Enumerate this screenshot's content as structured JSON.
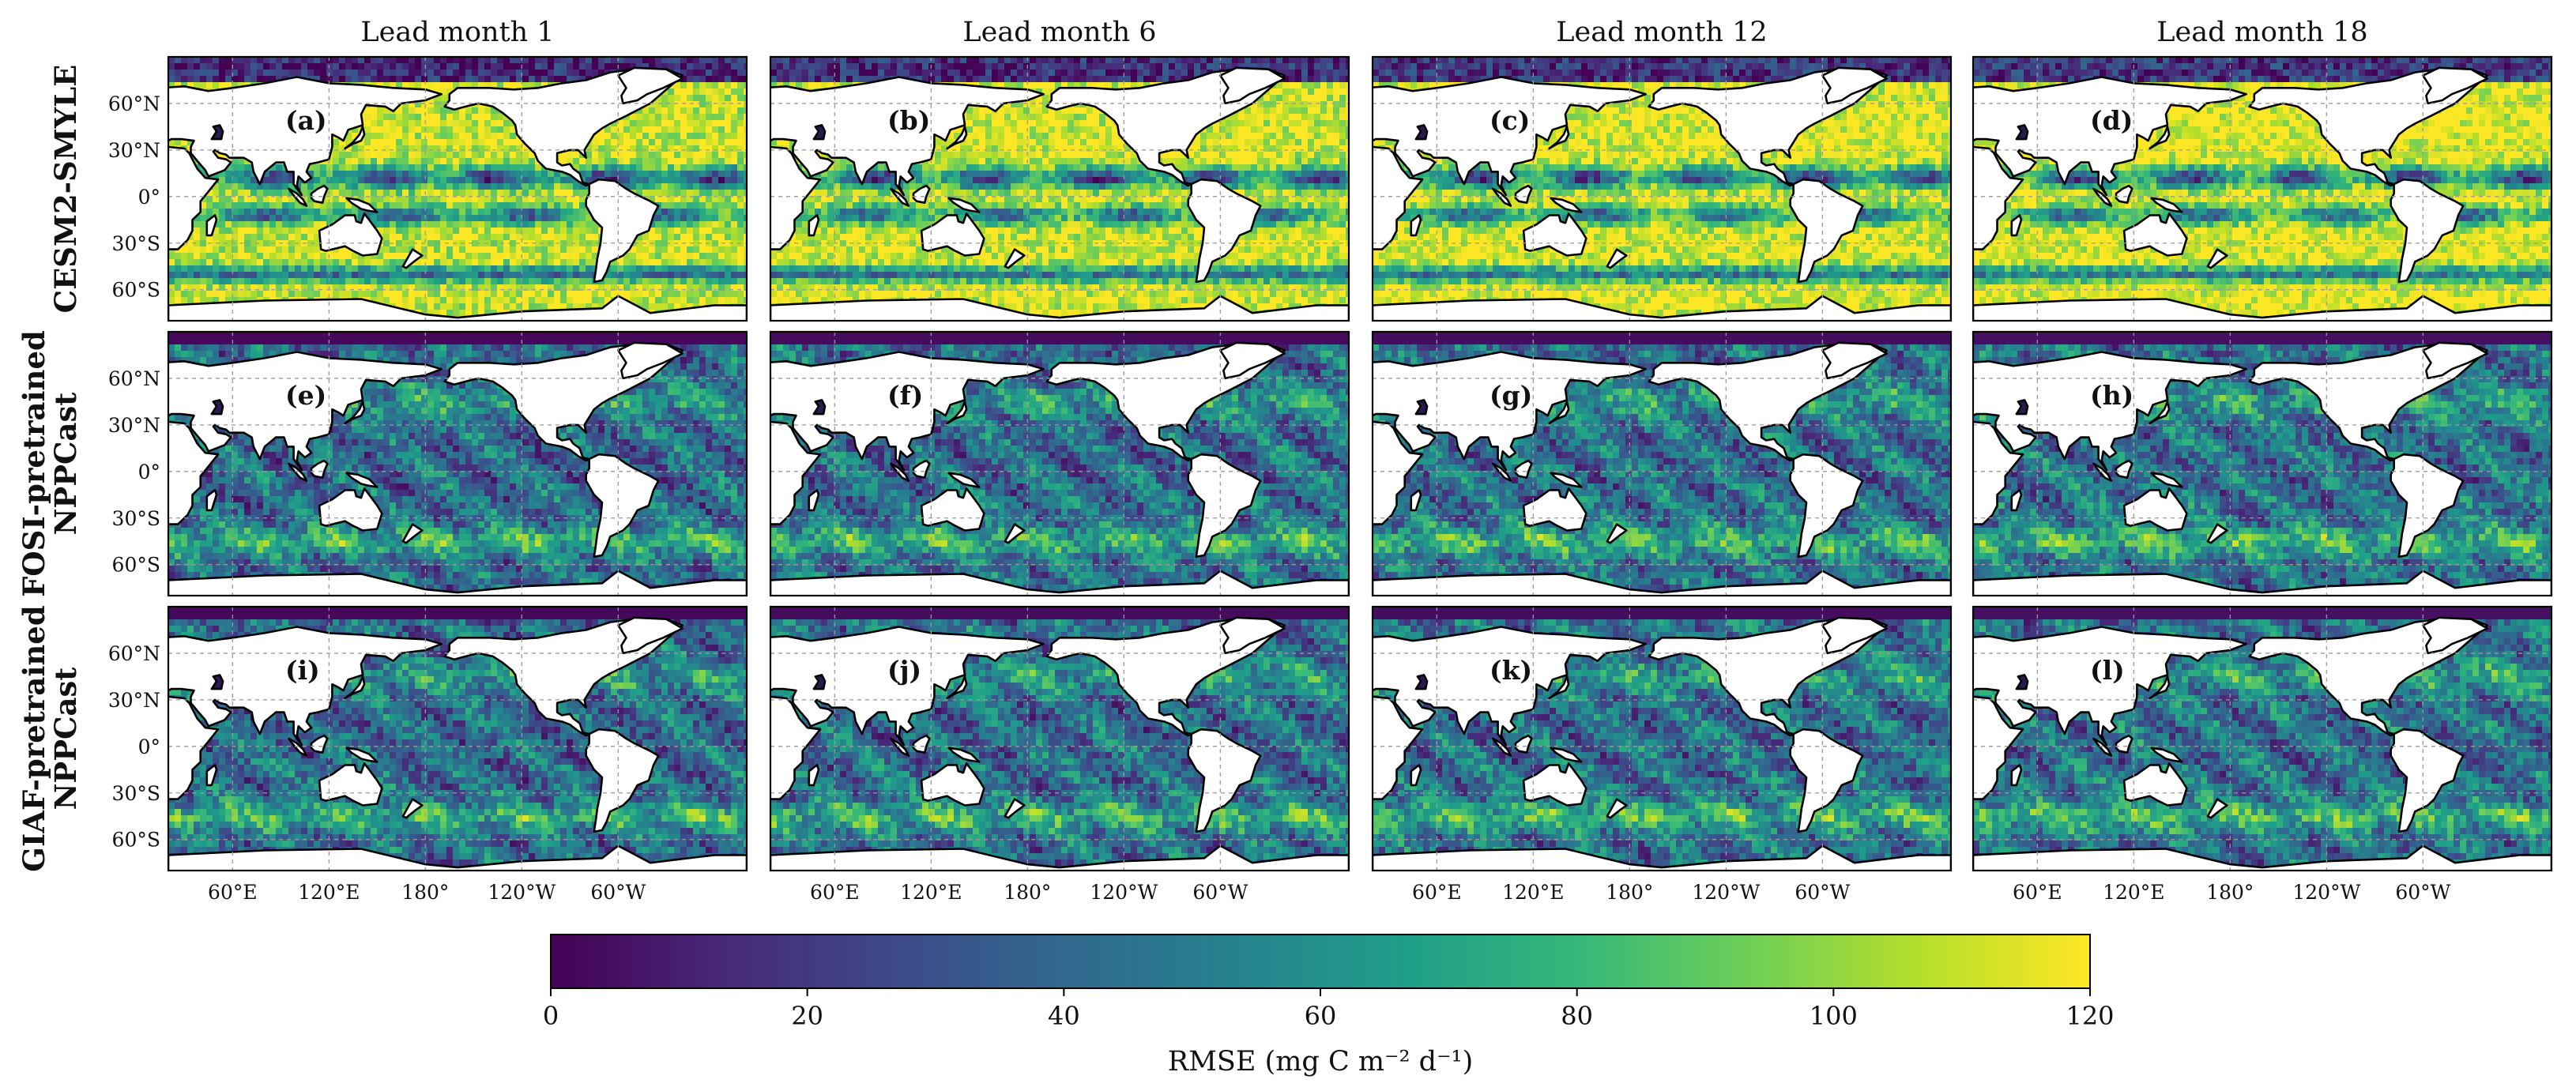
{
  "figure": {
    "columns": [
      {
        "title": "Lead month 1"
      },
      {
        "title": "Lead month 6"
      },
      {
        "title": "Lead month 12"
      },
      {
        "title": "Lead month 18"
      }
    ],
    "rows": [
      {
        "label_lines": [
          "CESM2-SMYLE"
        ],
        "style": "high"
      },
      {
        "label_lines": [
          "FOSI-pretrained",
          "NPPCast"
        ],
        "style": "low"
      },
      {
        "label_lines": [
          "GIAF-pretrained",
          "NPPCast"
        ],
        "style": "low"
      }
    ],
    "panel_labels": [
      "(a)",
      "(b)",
      "(c)",
      "(d)",
      "(e)",
      "(f)",
      "(g)",
      "(h)",
      "(i)",
      "(j)",
      "(k)",
      "(l)"
    ],
    "lat_ticks": [
      "60°N",
      "30°N",
      "0°",
      "30°S",
      "60°S"
    ],
    "lon_ticks": [
      "60°E",
      "120°E",
      "180°",
      "120°W",
      "60°W"
    ],
    "colorbar": {
      "label": "RMSE (mg C m⁻² d⁻¹)",
      "min": 0,
      "max": 120,
      "ticks": [
        "0",
        "20",
        "40",
        "60",
        "80",
        "100",
        "120"
      ],
      "colormap": "viridis",
      "stops": [
        "#440154",
        "#482878",
        "#3e4989",
        "#31688e",
        "#26828e",
        "#1f9e89",
        "#35b779",
        "#6ece58",
        "#b5de2b",
        "#fde725"
      ]
    },
    "colors": {
      "land": "#ffffff",
      "coast": "#000000",
      "grid": "#9a9a9a",
      "high_rmse": "#f4e526",
      "low_rmse": "#3b528b"
    }
  }
}
